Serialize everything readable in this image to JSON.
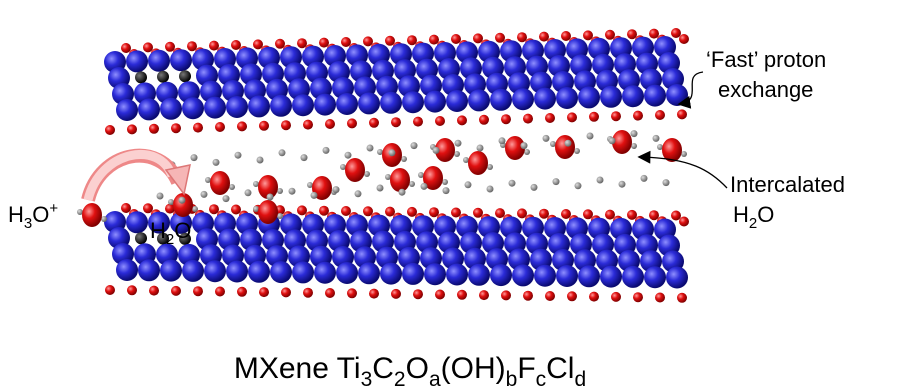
{
  "hydronium": [
    "H",
    "3",
    "O",
    "+"
  ],
  "water": [
    "H",
    "2",
    "O"
  ],
  "fast_exchange": [
    "‘Fast’ proton",
    "exchange"
  ],
  "intercalated": {
    "line1": "Intercalated",
    "line2": [
      "H",
      "2",
      "O"
    ]
  },
  "title": [
    "MXene Ti",
    "3",
    "C",
    "2",
    "O",
    "a",
    "(OH)",
    "b",
    "F",
    "c",
    "Cl",
    "d"
  ]
}
